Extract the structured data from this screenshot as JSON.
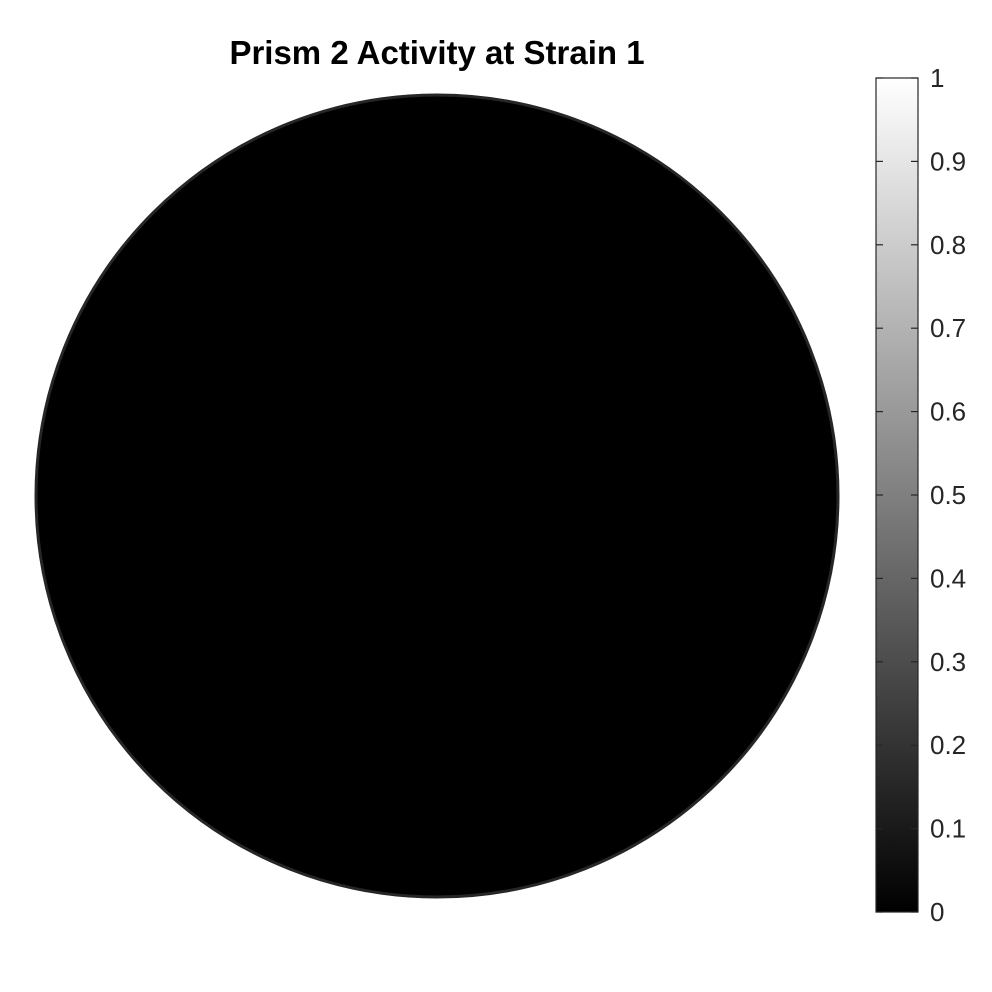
{
  "colors": {
    "disk_fill": "#000000",
    "disk_edge": "#262626",
    "colormap_low": "#000000",
    "colormap_high": "#ffffff",
    "text": "#262626",
    "title": "#000000"
  },
  "chart_data": {
    "type": "heatmap",
    "title": "Prism 2 Activity at Strain 1",
    "shape": "disk",
    "colormap": "gray",
    "values": [
      0
    ],
    "clim": [
      0,
      1
    ],
    "colorbar": {
      "location": "right",
      "ticks": [
        0,
        0.1,
        0.2,
        0.3,
        0.4,
        0.5,
        0.6,
        0.7,
        0.8,
        0.9,
        1
      ],
      "tick_labels": [
        "0",
        "0.1",
        "0.2",
        "0.3",
        "0.4",
        "0.5",
        "0.6",
        "0.7",
        "0.8",
        "0.9",
        "1"
      ]
    },
    "axes_visible": false,
    "grid": false
  }
}
